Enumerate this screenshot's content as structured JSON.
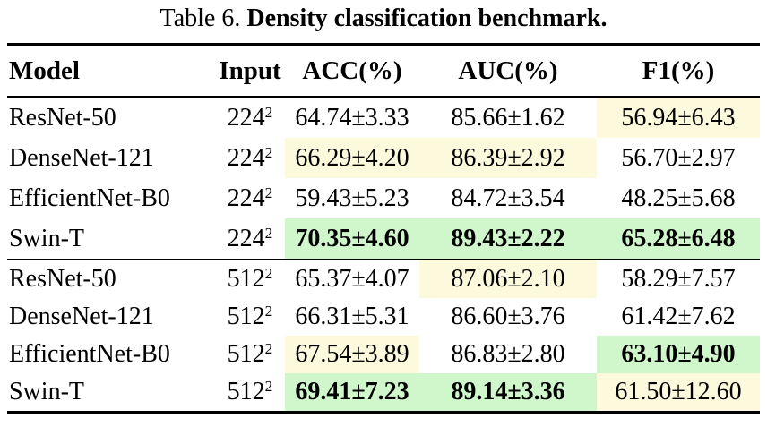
{
  "title": {
    "prefix": "Table 6.",
    "emphasis": "Density classification benchmark."
  },
  "colors": {
    "best_highlight": "#d0f7cc",
    "second_highlight": "#fdf9dc",
    "rule": "#000000",
    "text": "#000000",
    "background": "#ffffff"
  },
  "legend_semantics": {
    "best": "green highlight, bold value",
    "second": "yellow highlight"
  },
  "table": {
    "headers": [
      "Model",
      "Input",
      "ACC(%)",
      "AUC(%)",
      "F1(%)"
    ],
    "blocks": [
      {
        "name": "input-224",
        "rows": [
          {
            "model": "ResNet-50",
            "input": "224",
            "input_sup": "2",
            "metrics": [
              {
                "value": "64.74±3.33",
                "tone": "none",
                "bold": false
              },
              {
                "value": "85.66±1.62",
                "tone": "none",
                "bold": false
              },
              {
                "value": "56.94±6.43",
                "tone": "second",
                "bold": false
              }
            ]
          },
          {
            "model": "DenseNet-121",
            "input": "224",
            "input_sup": "2",
            "metrics": [
              {
                "value": "66.29±4.20",
                "tone": "second",
                "bold": false
              },
              {
                "value": "86.39±2.92",
                "tone": "second",
                "bold": false
              },
              {
                "value": "56.70±2.97",
                "tone": "none",
                "bold": false
              }
            ]
          },
          {
            "model": "EfficientNet-B0",
            "input": "224",
            "input_sup": "2",
            "metrics": [
              {
                "value": "59.43±5.23",
                "tone": "none",
                "bold": false
              },
              {
                "value": "84.72±3.54",
                "tone": "none",
                "bold": false
              },
              {
                "value": "48.25±5.68",
                "tone": "none",
                "bold": false
              }
            ]
          },
          {
            "model": "Swin-T",
            "input": "224",
            "input_sup": "2",
            "metrics": [
              {
                "value": "70.35±4.60",
                "tone": "best",
                "bold": true
              },
              {
                "value": "89.43±2.22",
                "tone": "best",
                "bold": true
              },
              {
                "value": "65.28±6.48",
                "tone": "best",
                "bold": true
              }
            ]
          }
        ]
      },
      {
        "name": "input-512",
        "rows": [
          {
            "model": "ResNet-50",
            "input": "512",
            "input_sup": "2",
            "metrics": [
              {
                "value": "65.37±4.07",
                "tone": "none",
                "bold": false
              },
              {
                "value": "87.06±2.10",
                "tone": "second",
                "bold": false
              },
              {
                "value": "58.29±7.57",
                "tone": "none",
                "bold": false
              }
            ]
          },
          {
            "model": "DenseNet-121",
            "input": "512",
            "input_sup": "2",
            "metrics": [
              {
                "value": "66.31±5.31",
                "tone": "none",
                "bold": false
              },
              {
                "value": "86.60±3.76",
                "tone": "none",
                "bold": false
              },
              {
                "value": "61.42±7.62",
                "tone": "none",
                "bold": false
              }
            ]
          },
          {
            "model": "EfficientNet-B0",
            "input": "512",
            "input_sup": "2",
            "metrics": [
              {
                "value": "67.54±3.89",
                "tone": "second",
                "bold": false
              },
              {
                "value": "86.83±2.80",
                "tone": "none",
                "bold": false
              },
              {
                "value": "63.10±4.90",
                "tone": "best",
                "bold": true
              }
            ]
          },
          {
            "model": "Swin-T",
            "input": "512",
            "input_sup": "2",
            "metrics": [
              {
                "value": "69.41±7.23",
                "tone": "best",
                "bold": true
              },
              {
                "value": "89.14±3.36",
                "tone": "best",
                "bold": true
              },
              {
                "value": "61.50±12.60",
                "tone": "second",
                "bold": false
              }
            ]
          }
        ]
      }
    ]
  }
}
